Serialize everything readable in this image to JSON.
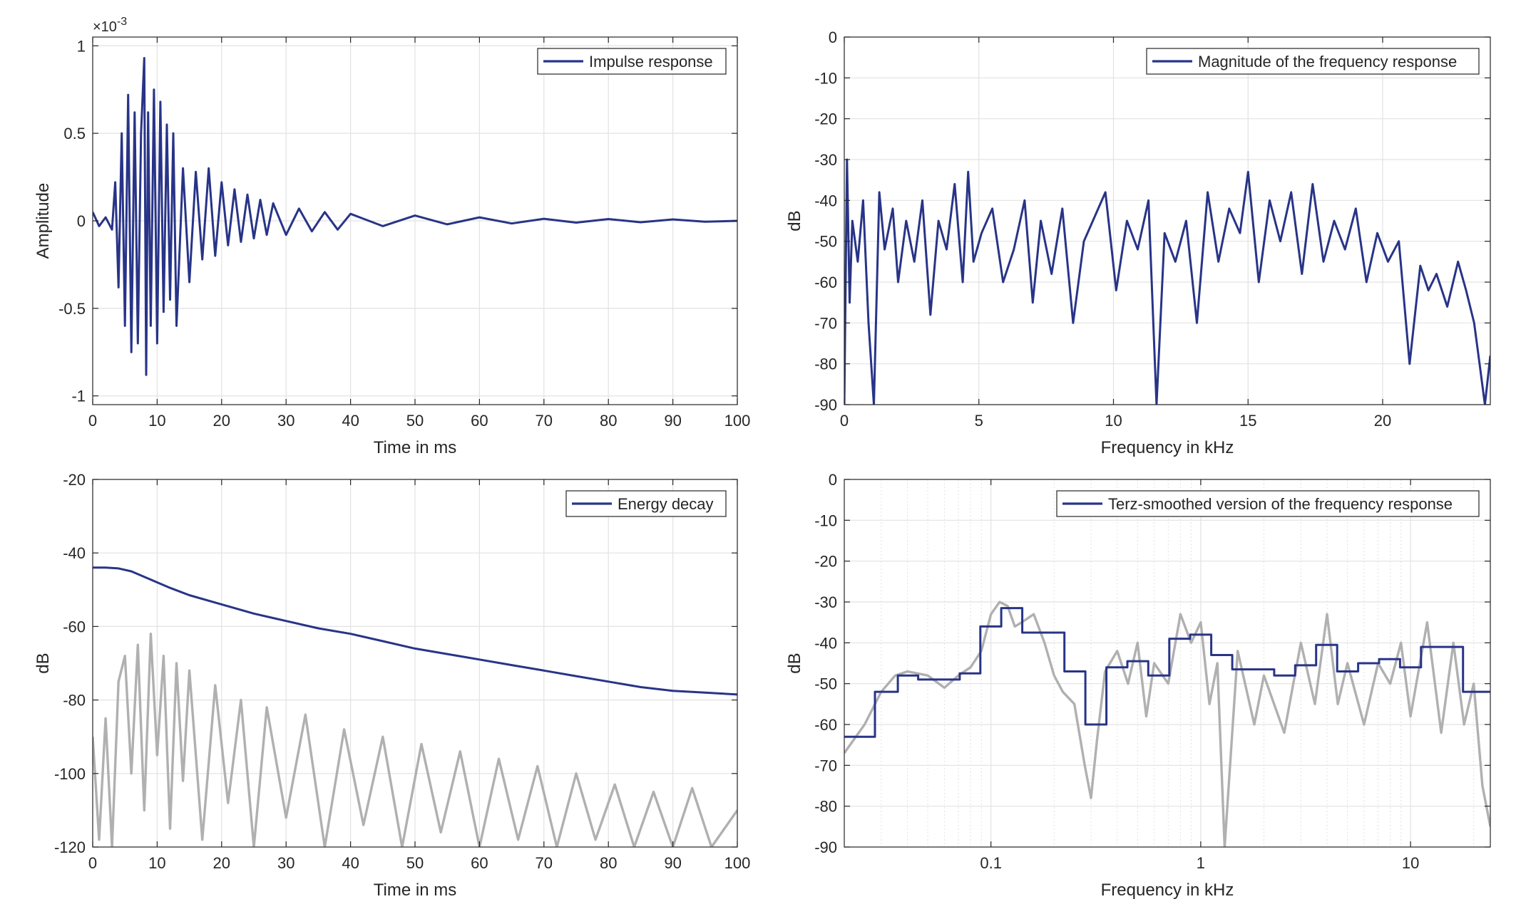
{
  "colors": {
    "series": "#283487",
    "background_trace": "#b0b0b0",
    "axes": "#262626",
    "grid": "#e2e2e2"
  },
  "chart_data": [
    {
      "id": "impulse",
      "type": "line",
      "title": "",
      "xlabel": "Time in ms",
      "ylabel": "Amplitude",
      "exponent_label": "×10",
      "exponent_power": "-3",
      "xlim": [
        0,
        100
      ],
      "ylim": [
        -1.05,
        1.05
      ],
      "xscale": "linear",
      "xticks": [
        0,
        10,
        20,
        30,
        40,
        50,
        60,
        70,
        80,
        90,
        100
      ],
      "xticklabels": [
        "0",
        "10",
        "20",
        "30",
        "40",
        "50",
        "60",
        "70",
        "80",
        "90",
        "100"
      ],
      "yticks": [
        -1,
        -0.5,
        0,
        0.5,
        1
      ],
      "yticklabels": [
        "-1",
        "-0.5",
        "0",
        "0.5",
        "1"
      ],
      "grid": true,
      "legend_position": "top-right",
      "series": [
        {
          "name": "Impulse response",
          "style": "main",
          "x": [
            0,
            1,
            2,
            3,
            3.5,
            4,
            4.5,
            5,
            5.5,
            6,
            6.5,
            7,
            7.5,
            8,
            8.3,
            8.6,
            9,
            9.5,
            10,
            10.5,
            11,
            11.5,
            12,
            12.5,
            13,
            14,
            15,
            16,
            17,
            18,
            19,
            20,
            21,
            22,
            23,
            24,
            25,
            26,
            27,
            28,
            30,
            32,
            34,
            36,
            38,
            40,
            45,
            50,
            55,
            60,
            65,
            70,
            75,
            80,
            85,
            90,
            95,
            100
          ],
          "y": [
            0.05,
            -0.03,
            0.02,
            -0.05,
            0.22,
            -0.38,
            0.5,
            -0.6,
            0.72,
            -0.75,
            0.62,
            -0.7,
            0.5,
            0.93,
            -0.88,
            0.62,
            -0.6,
            0.75,
            -0.7,
            0.68,
            -0.52,
            0.55,
            -0.45,
            0.5,
            -0.6,
            0.3,
            -0.35,
            0.28,
            -0.22,
            0.3,
            -0.2,
            0.22,
            -0.14,
            0.18,
            -0.12,
            0.15,
            -0.1,
            0.12,
            -0.08,
            0.1,
            -0.08,
            0.07,
            -0.06,
            0.05,
            -0.05,
            0.04,
            -0.03,
            0.03,
            -0.02,
            0.02,
            -0.015,
            0.012,
            -0.01,
            0.01,
            -0.008,
            0.008,
            -0.005,
            0.0
          ]
        }
      ]
    },
    {
      "id": "magnitude",
      "type": "line",
      "title": "",
      "xlabel": "Frequency in kHz",
      "ylabel": "dB",
      "xlim": [
        0,
        24
      ],
      "ylim": [
        -90,
        0
      ],
      "xscale": "linear",
      "xticks": [
        0,
        5,
        10,
        15,
        20
      ],
      "xticklabels": [
        "0",
        "5",
        "10",
        "15",
        "20"
      ],
      "yticks": [
        -90,
        -80,
        -70,
        -60,
        -50,
        -40,
        -30,
        -20,
        -10,
        0
      ],
      "yticklabels": [
        "-90",
        "-80",
        "-70",
        "-60",
        "-50",
        "-40",
        "-30",
        "-20",
        "-10",
        "0"
      ],
      "grid": true,
      "legend_position": "top-right",
      "series": [
        {
          "name": "Magnitude of the frequency response",
          "style": "main",
          "x": [
            0,
            0.1,
            0.2,
            0.3,
            0.5,
            0.7,
            0.9,
            1.1,
            1.3,
            1.5,
            1.8,
            2.0,
            2.3,
            2.6,
            2.9,
            3.2,
            3.5,
            3.8,
            4.1,
            4.4,
            4.6,
            4.8,
            5.1,
            5.5,
            5.9,
            6.3,
            6.7,
            7.0,
            7.3,
            7.7,
            8.1,
            8.5,
            8.9,
            9.3,
            9.7,
            10.1,
            10.5,
            10.9,
            11.3,
            11.6,
            11.9,
            12.3,
            12.7,
            13.1,
            13.5,
            13.9,
            14.3,
            14.7,
            15.0,
            15.4,
            15.8,
            16.2,
            16.6,
            17.0,
            17.4,
            17.8,
            18.2,
            18.6,
            19.0,
            19.4,
            19.8,
            20.2,
            20.6,
            21.0,
            21.4,
            21.7,
            22.0,
            22.4,
            22.8,
            23.1,
            23.4,
            23.6,
            23.8,
            24
          ],
          "y": [
            -90,
            -30,
            -65,
            -45,
            -55,
            -40,
            -70,
            -90,
            -38,
            -52,
            -42,
            -60,
            -45,
            -55,
            -40,
            -68,
            -45,
            -52,
            -36,
            -60,
            -33,
            -55,
            -48,
            -42,
            -60,
            -52,
            -40,
            -65,
            -45,
            -58,
            -42,
            -70,
            -50,
            -44,
            -38,
            -62,
            -45,
            -52,
            -40,
            -90,
            -48,
            -55,
            -45,
            -70,
            -38,
            -55,
            -42,
            -48,
            -33,
            -60,
            -40,
            -50,
            -38,
            -58,
            -36,
            -55,
            -45,
            -52,
            -42,
            -60,
            -48,
            -55,
            -50,
            -80,
            -56,
            -62,
            -58,
            -66,
            -55,
            -62,
            -70,
            -80,
            -90,
            -78
          ]
        }
      ]
    },
    {
      "id": "energy",
      "type": "line",
      "title": "",
      "xlabel": "Time in ms",
      "ylabel": "dB",
      "xlim": [
        0,
        100
      ],
      "ylim": [
        -120,
        -20
      ],
      "xscale": "linear",
      "xticks": [
        0,
        10,
        20,
        30,
        40,
        50,
        60,
        70,
        80,
        90,
        100
      ],
      "xticklabels": [
        "0",
        "10",
        "20",
        "30",
        "40",
        "50",
        "60",
        "70",
        "80",
        "90",
        "100"
      ],
      "yticks": [
        -120,
        -100,
        -80,
        -60,
        -40,
        -20
      ],
      "yticklabels": [
        "-120",
        "-100",
        "-80",
        "-60",
        "-40",
        "-20"
      ],
      "grid": true,
      "legend_position": "top-right",
      "series": [
        {
          "name": "",
          "style": "background",
          "x": [
            0,
            1,
            2,
            3,
            4,
            5,
            6,
            7,
            8,
            9,
            10,
            11,
            12,
            13,
            14,
            15,
            17,
            19,
            21,
            23,
            25,
            27,
            30,
            33,
            36,
            39,
            42,
            45,
            48,
            51,
            54,
            57,
            60,
            63,
            66,
            69,
            72,
            75,
            78,
            81,
            84,
            87,
            90,
            93,
            96,
            100
          ],
          "y": [
            -90,
            -118,
            -85,
            -120,
            -75,
            -68,
            -100,
            -65,
            -110,
            -62,
            -95,
            -68,
            -115,
            -70,
            -102,
            -72,
            -118,
            -76,
            -108,
            -80,
            -120,
            -82,
            -112,
            -84,
            -120,
            -88,
            -114,
            -90,
            -120,
            -92,
            -116,
            -94,
            -120,
            -96,
            -118,
            -98,
            -120,
            -100,
            -118,
            -103,
            -120,
            -105,
            -120,
            -104,
            -120,
            -110
          ]
        },
        {
          "name": "Energy decay",
          "style": "main",
          "x": [
            0,
            2,
            4,
            6,
            8,
            10,
            12,
            15,
            20,
            25,
            30,
            35,
            40,
            45,
            50,
            55,
            60,
            65,
            70,
            75,
            80,
            85,
            90,
            95,
            100
          ],
          "y": [
            -44,
            -44,
            -44.2,
            -45,
            -46.5,
            -48,
            -49.5,
            -51.5,
            -54,
            -56.5,
            -58.5,
            -60.5,
            -62,
            -64,
            -66,
            -67.5,
            -69,
            -70.5,
            -72,
            -73.5,
            -75,
            -76.5,
            -77.5,
            -78,
            -78.5
          ]
        }
      ]
    },
    {
      "id": "terz",
      "type": "line",
      "title": "",
      "xlabel": "Frequency in kHz",
      "ylabel": "dB",
      "xlim": [
        0.02,
        24
      ],
      "ylim": [
        -90,
        0
      ],
      "xscale": "log",
      "xticks": [
        0.1,
        1,
        10
      ],
      "xticklabels": [
        "0.1",
        "1",
        "10"
      ],
      "yticks": [
        -90,
        -80,
        -70,
        -60,
        -50,
        -40,
        -30,
        -20,
        -10,
        0
      ],
      "yticklabels": [
        "-90",
        "-80",
        "-70",
        "-60",
        "-50",
        "-40",
        "-30",
        "-20",
        "-10",
        "0"
      ],
      "grid": true,
      "minor_log_grid": true,
      "legend_position": "top-right",
      "series": [
        {
          "name": "",
          "style": "background",
          "x": [
            0.02,
            0.025,
            0.03,
            0.035,
            0.04,
            0.05,
            0.06,
            0.07,
            0.08,
            0.09,
            0.1,
            0.11,
            0.12,
            0.13,
            0.14,
            0.16,
            0.18,
            0.2,
            0.22,
            0.25,
            0.28,
            0.3,
            0.32,
            0.35,
            0.4,
            0.45,
            0.5,
            0.55,
            0.6,
            0.7,
            0.8,
            0.9,
            1.0,
            1.1,
            1.2,
            1.3,
            1.5,
            1.8,
            2.0,
            2.5,
            3.0,
            3.5,
            4.0,
            4.5,
            5.0,
            6.0,
            7.0,
            8.0,
            9.0,
            10,
            12,
            14,
            16,
            18,
            20,
            22,
            24
          ],
          "y": [
            -67,
            -60,
            -52,
            -48,
            -47,
            -48,
            -51,
            -48,
            -46,
            -42,
            -33,
            -30,
            -31,
            -36,
            -35,
            -33,
            -40,
            -48,
            -52,
            -55,
            -70,
            -78,
            -64,
            -47,
            -42,
            -50,
            -40,
            -58,
            -45,
            -50,
            -33,
            -40,
            -35,
            -55,
            -45,
            -90,
            -42,
            -60,
            -48,
            -62,
            -40,
            -55,
            -33,
            -55,
            -45,
            -60,
            -45,
            -50,
            -40,
            -58,
            -35,
            -62,
            -40,
            -60,
            -50,
            -75,
            -85
          ]
        },
        {
          "name": "Terz-smoothed version of the frequency response",
          "style": "main",
          "step": true,
          "x": [
            0.02,
            0.028,
            0.036,
            0.045,
            0.056,
            0.071,
            0.089,
            0.112,
            0.141,
            0.178,
            0.224,
            0.282,
            0.355,
            0.447,
            0.562,
            0.708,
            0.891,
            1.122,
            1.413,
            1.778,
            2.239,
            2.818,
            3.548,
            4.467,
            5.623,
            7.079,
            8.913,
            11.22,
            14.13,
            17.78,
            24
          ],
          "y": [
            -63,
            -52,
            -48,
            -49,
            -49,
            -47.5,
            -36,
            -31.5,
            -37.5,
            -37.5,
            -47,
            -60,
            -46,
            -44.5,
            -48,
            -39,
            -38,
            -43,
            -46.5,
            -46.5,
            -48,
            -45.5,
            -40.5,
            -47,
            -45,
            -44,
            -46,
            -41,
            -41,
            -52,
            -52
          ]
        }
      ]
    }
  ]
}
